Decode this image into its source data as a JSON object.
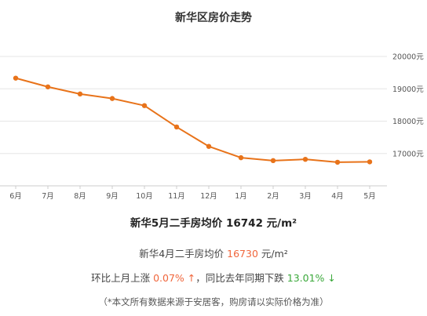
{
  "page_title": "新华区房价走势",
  "chart_data": {
    "type": "line",
    "title": "新华区房价走势",
    "categories": [
      "6月",
      "7月",
      "8月",
      "9月",
      "10月",
      "11月",
      "12月",
      "1月",
      "2月",
      "3月",
      "4月",
      "5月"
    ],
    "values": [
      19330,
      19060,
      18840,
      18700,
      18480,
      17820,
      17220,
      16870,
      16780,
      16820,
      16730,
      16742
    ],
    "y_ticks": [
      "20000元",
      "19000元",
      "18000元",
      "17000元"
    ],
    "ylim": [
      16000,
      20000
    ],
    "grid": true,
    "line_color": "#e8731a"
  },
  "summary": {
    "headline_prefix": "新华5月二手房均价 ",
    "headline_value": "16742",
    "headline_unit": " 元/m²",
    "prev_prefix": "新华4月二手房均价 ",
    "prev_value": "16730",
    "prev_unit": " 元/m²",
    "mom_prefix": "环比上月上涨 ",
    "mom_value": "0.07%",
    "mom_arrow": "↑",
    "yoy_prefix": "，同比去年同期下跌 ",
    "yoy_value": "13.01%",
    "yoy_arrow": "↓",
    "note": "（*本文所有数据来源于安居客，购房请以实际价格为准）"
  },
  "colors": {
    "up": "#f0663c",
    "down": "#3aa83a"
  }
}
